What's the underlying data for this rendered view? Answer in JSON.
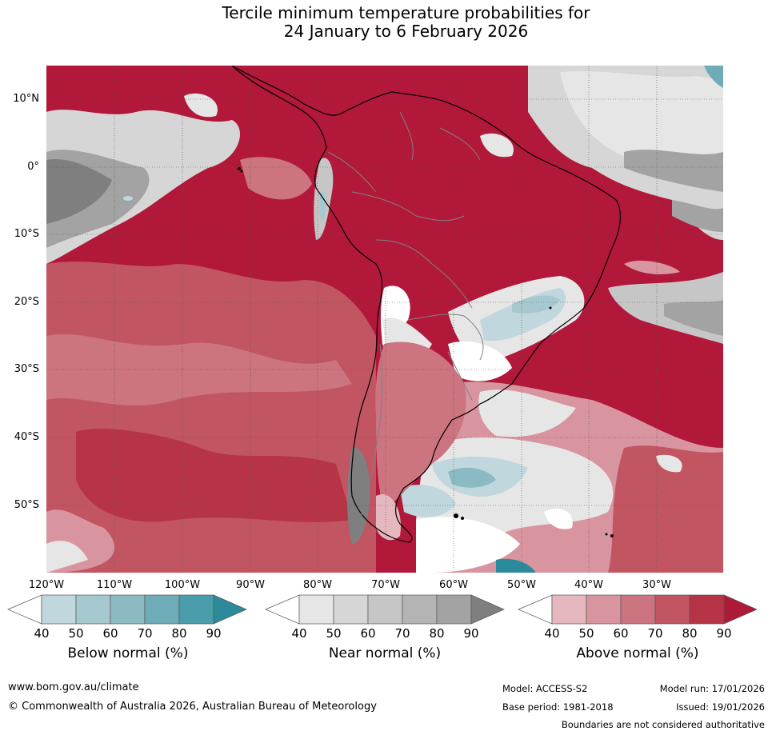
{
  "title": {
    "line1": "Tercile minimum temperature probabilities for",
    "line2": "24 January to 6 February 2026"
  },
  "map": {
    "lat_labels": [
      "10°N",
      "0°",
      "10°S",
      "20°S",
      "30°S",
      "40°S",
      "50°S"
    ],
    "lon_labels": [
      "120°W",
      "110°W",
      "100°W",
      "90°W",
      "80°W",
      "70°W",
      "60°W",
      "50°W",
      "40°W",
      "30°W"
    ]
  },
  "legends": [
    {
      "title": "Below normal (%)",
      "ticks": [
        "40",
        "50",
        "60",
        "70",
        "80",
        "90"
      ],
      "colors": [
        "#ffffff",
        "#c0d7dd",
        "#a6c8cf",
        "#8cbac3",
        "#6eacb8",
        "#4a9daa",
        "#2b8b9b"
      ]
    },
    {
      "title": "Near normal (%)",
      "ticks": [
        "40",
        "50",
        "60",
        "70",
        "80",
        "90"
      ],
      "colors": [
        "#ffffff",
        "#e6e6e6",
        "#d6d6d6",
        "#c6c6c6",
        "#b4b4b4",
        "#a3a3a3",
        "#7f7f7f"
      ]
    },
    {
      "title": "Above normal (%)",
      "ticks": [
        "40",
        "50",
        "60",
        "70",
        "80",
        "90"
      ],
      "colors": [
        "#ffffff",
        "#e4b8be",
        "#d9959f",
        "#cc7480",
        "#c25562",
        "#b63446",
        "#ad1a37"
      ]
    }
  ],
  "footer": {
    "website": "www.bom.gov.au/climate",
    "copyright": "© Commonwealth of Australia 2026, Australian Bureau of Meteorology",
    "model": "Model: ACCESS-S2",
    "model_run": "Model run: 17/01/2026",
    "base_period": "Base period: 1981-2018",
    "issued": "Issued: 19/01/2026",
    "disclaimer": "Boundaries are not considered authoritative"
  }
}
